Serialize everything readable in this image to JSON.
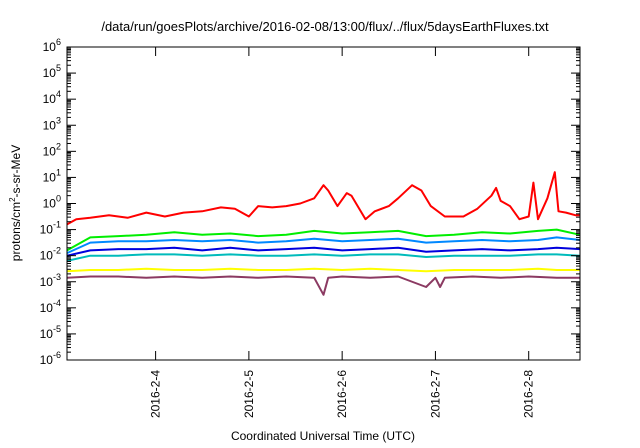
{
  "chart_data": {
    "type": "line",
    "title": "/data/run/goesPlots/archive/2016-02-08/13:00/flux/../flux/5daysEarthFluxes.txt",
    "xlabel": "Coordinated Universal Time (UTC)",
    "ylabel": {
      "pre": "protons/cm",
      "sup": "2",
      "post": "-s-sr-MeV"
    },
    "yscale": "log",
    "ylim_exp": [
      -6,
      6
    ],
    "ytick_exponents": [
      -6,
      -5,
      -4,
      -3,
      -2,
      -1,
      0,
      1,
      2,
      3,
      4,
      5,
      6
    ],
    "ytick_base": "10",
    "x_unit": "days (2016-02)",
    "xlim": [
      3.05,
      8.55
    ],
    "xticks": [
      {
        "x": 4,
        "label": "2016-2-4"
      },
      {
        "x": 5,
        "label": "2016-2-5"
      },
      {
        "x": 6,
        "label": "2016-2-6"
      },
      {
        "x": 7,
        "label": "2016-2-7"
      },
      {
        "x": 8,
        "label": "2016-2-8"
      }
    ],
    "grid": false,
    "legend": "none",
    "series": [
      {
        "color": "#ff0000",
        "log10_values": [
          [
            3.05,
            -0.8
          ],
          [
            3.15,
            -0.6
          ],
          [
            3.3,
            -0.55
          ],
          [
            3.5,
            -0.45
          ],
          [
            3.7,
            -0.55
          ],
          [
            3.9,
            -0.35
          ],
          [
            4.1,
            -0.5
          ],
          [
            4.3,
            -0.35
          ],
          [
            4.5,
            -0.3
          ],
          [
            4.7,
            -0.15
          ],
          [
            4.85,
            -0.2
          ],
          [
            5.0,
            -0.5
          ],
          [
            5.1,
            -0.1
          ],
          [
            5.25,
            -0.15
          ],
          [
            5.4,
            -0.1
          ],
          [
            5.55,
            0.0
          ],
          [
            5.7,
            0.2
          ],
          [
            5.8,
            0.7
          ],
          [
            5.85,
            0.5
          ],
          [
            5.95,
            -0.1
          ],
          [
            6.05,
            0.4
          ],
          [
            6.1,
            0.3
          ],
          [
            6.25,
            -0.6
          ],
          [
            6.35,
            -0.3
          ],
          [
            6.5,
            -0.1
          ],
          [
            6.6,
            0.2
          ],
          [
            6.75,
            0.7
          ],
          [
            6.85,
            0.5
          ],
          [
            6.95,
            -0.1
          ],
          [
            7.1,
            -0.5
          ],
          [
            7.3,
            -0.5
          ],
          [
            7.45,
            -0.2
          ],
          [
            7.6,
            0.3
          ],
          [
            7.65,
            0.6
          ],
          [
            7.7,
            0.1
          ],
          [
            7.8,
            -0.1
          ],
          [
            7.9,
            -0.6
          ],
          [
            8.0,
            -0.5
          ],
          [
            8.05,
            0.8
          ],
          [
            8.1,
            -0.6
          ],
          [
            8.2,
            0.2
          ],
          [
            8.28,
            1.2
          ],
          [
            8.32,
            -0.3
          ],
          [
            8.4,
            -0.35
          ],
          [
            8.5,
            -0.45
          ],
          [
            8.55,
            -0.45
          ]
        ]
      },
      {
        "color": "#00ee00",
        "log10_values": [
          [
            3.05,
            -1.8
          ],
          [
            3.3,
            -1.3
          ],
          [
            3.6,
            -1.25
          ],
          [
            3.9,
            -1.2
          ],
          [
            4.2,
            -1.1
          ],
          [
            4.5,
            -1.2
          ],
          [
            4.8,
            -1.15
          ],
          [
            5.1,
            -1.25
          ],
          [
            5.4,
            -1.2
          ],
          [
            5.7,
            -1.05
          ],
          [
            6.0,
            -1.15
          ],
          [
            6.3,
            -1.1
          ],
          [
            6.6,
            -1.05
          ],
          [
            6.9,
            -1.25
          ],
          [
            7.2,
            -1.2
          ],
          [
            7.5,
            -1.1
          ],
          [
            7.8,
            -1.15
          ],
          [
            8.1,
            -1.05
          ],
          [
            8.3,
            -1.0
          ],
          [
            8.55,
            -1.2
          ]
        ]
      },
      {
        "color": "#0088ff",
        "log10_values": [
          [
            3.05,
            -1.9
          ],
          [
            3.3,
            -1.5
          ],
          [
            3.6,
            -1.45
          ],
          [
            3.9,
            -1.45
          ],
          [
            4.2,
            -1.4
          ],
          [
            4.5,
            -1.45
          ],
          [
            4.8,
            -1.4
          ],
          [
            5.1,
            -1.5
          ],
          [
            5.4,
            -1.45
          ],
          [
            5.7,
            -1.35
          ],
          [
            6.0,
            -1.45
          ],
          [
            6.3,
            -1.4
          ],
          [
            6.6,
            -1.35
          ],
          [
            6.9,
            -1.5
          ],
          [
            7.2,
            -1.45
          ],
          [
            7.5,
            -1.4
          ],
          [
            7.8,
            -1.45
          ],
          [
            8.1,
            -1.4
          ],
          [
            8.3,
            -1.3
          ],
          [
            8.55,
            -1.4
          ]
        ]
      },
      {
        "color": "#0000dd",
        "log10_values": [
          [
            3.05,
            -2.0
          ],
          [
            3.3,
            -1.8
          ],
          [
            3.6,
            -1.75
          ],
          [
            3.9,
            -1.75
          ],
          [
            4.2,
            -1.7
          ],
          [
            4.5,
            -1.8
          ],
          [
            4.8,
            -1.7
          ],
          [
            5.1,
            -1.8
          ],
          [
            5.4,
            -1.75
          ],
          [
            5.7,
            -1.7
          ],
          [
            6.0,
            -1.8
          ],
          [
            6.3,
            -1.75
          ],
          [
            6.6,
            -1.7
          ],
          [
            6.9,
            -1.85
          ],
          [
            7.2,
            -1.8
          ],
          [
            7.5,
            -1.75
          ],
          [
            7.8,
            -1.8
          ],
          [
            8.1,
            -1.75
          ],
          [
            8.3,
            -1.7
          ],
          [
            8.55,
            -1.75
          ]
        ]
      },
      {
        "color": "#00bbbb",
        "log10_values": [
          [
            3.05,
            -2.2
          ],
          [
            3.3,
            -2.0
          ],
          [
            3.6,
            -2.0
          ],
          [
            3.9,
            -1.95
          ],
          [
            4.2,
            -1.95
          ],
          [
            4.5,
            -2.0
          ],
          [
            4.8,
            -1.95
          ],
          [
            5.1,
            -2.0
          ],
          [
            5.4,
            -2.0
          ],
          [
            5.7,
            -1.95
          ],
          [
            6.0,
            -2.0
          ],
          [
            6.3,
            -1.95
          ],
          [
            6.6,
            -1.95
          ],
          [
            6.9,
            -2.05
          ],
          [
            7.2,
            -2.0
          ],
          [
            7.5,
            -2.0
          ],
          [
            7.8,
            -2.0
          ],
          [
            8.1,
            -1.95
          ],
          [
            8.3,
            -1.95
          ],
          [
            8.55,
            -2.0
          ]
        ]
      },
      {
        "color": "#ffff00",
        "log10_values": [
          [
            3.05,
            -2.6
          ],
          [
            3.3,
            -2.55
          ],
          [
            3.6,
            -2.55
          ],
          [
            3.9,
            -2.5
          ],
          [
            4.2,
            -2.55
          ],
          [
            4.5,
            -2.55
          ],
          [
            4.8,
            -2.5
          ],
          [
            5.1,
            -2.55
          ],
          [
            5.4,
            -2.55
          ],
          [
            5.7,
            -2.5
          ],
          [
            6.0,
            -2.55
          ],
          [
            6.3,
            -2.5
          ],
          [
            6.6,
            -2.55
          ],
          [
            6.9,
            -2.6
          ],
          [
            7.2,
            -2.55
          ],
          [
            7.5,
            -2.55
          ],
          [
            7.8,
            -2.55
          ],
          [
            8.1,
            -2.5
          ],
          [
            8.3,
            -2.55
          ],
          [
            8.55,
            -2.55
          ]
        ]
      },
      {
        "color": "#8b3a62",
        "log10_values": [
          [
            3.05,
            -2.85
          ],
          [
            3.3,
            -2.8
          ],
          [
            3.6,
            -2.8
          ],
          [
            3.9,
            -2.85
          ],
          [
            4.2,
            -2.8
          ],
          [
            4.5,
            -2.85
          ],
          [
            4.8,
            -2.8
          ],
          [
            5.1,
            -2.85
          ],
          [
            5.4,
            -2.8
          ],
          [
            5.7,
            -2.85
          ],
          [
            5.8,
            -3.5
          ],
          [
            5.85,
            -2.85
          ],
          [
            6.0,
            -2.8
          ],
          [
            6.3,
            -2.85
          ],
          [
            6.6,
            -2.8
          ],
          [
            6.9,
            -3.2
          ],
          [
            7.0,
            -2.85
          ],
          [
            7.05,
            -3.2
          ],
          [
            7.1,
            -2.85
          ],
          [
            7.4,
            -2.8
          ],
          [
            7.7,
            -2.85
          ],
          [
            8.0,
            -2.8
          ],
          [
            8.3,
            -2.85
          ],
          [
            8.55,
            -2.85
          ]
        ]
      }
    ]
  }
}
